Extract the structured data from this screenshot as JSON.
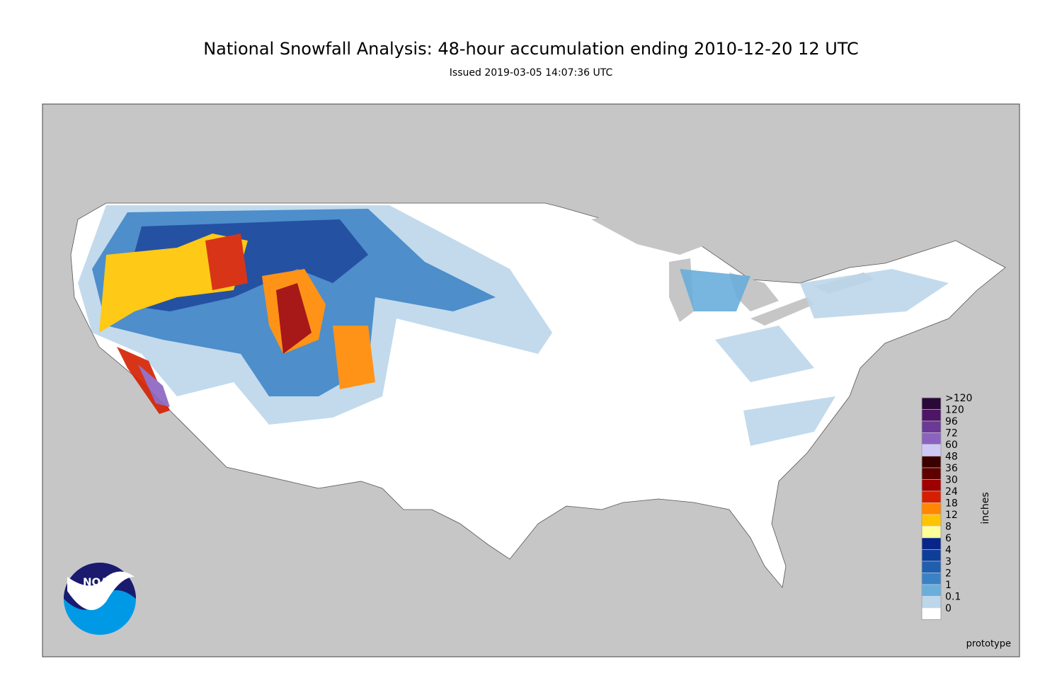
{
  "header": {
    "title": "National Snowfall Analysis: 48-hour accumulation ending 2010-12-20 12 UTC",
    "subtitle": "Issued 2019-03-05 14:07:36 UTC"
  },
  "legend": {
    "unit": "inches",
    "levels": [
      {
        "label": ">120",
        "color": "#2a0838"
      },
      {
        "label": "120",
        "color": "#4d1666"
      },
      {
        "label": "96",
        "color": "#6b3a94"
      },
      {
        "label": "72",
        "color": "#8a63bf"
      },
      {
        "label": "60",
        "color": "#cec8f5"
      },
      {
        "label": "48",
        "color": "#3a0000"
      },
      {
        "label": "36",
        "color": "#5e0000"
      },
      {
        "label": "30",
        "color": "#9e0000"
      },
      {
        "label": "24",
        "color": "#d42000"
      },
      {
        "label": "18",
        "color": "#ff8800"
      },
      {
        "label": "12",
        "color": "#ffc400"
      },
      {
        "label": "8",
        "color": "#ffff99"
      },
      {
        "label": "6",
        "color": "#08268a"
      },
      {
        "label": "4",
        "color": "#0e3f98"
      },
      {
        "label": "3",
        "color": "#1f5fae"
      },
      {
        "label": "2",
        "color": "#3a82c6"
      },
      {
        "label": "1",
        "color": "#6aaedc"
      },
      {
        "label": "0.1",
        "color": "#bcd6ea"
      },
      {
        "label": "0",
        "color": "#ffffff"
      }
    ]
  },
  "note": "prototype",
  "logo": "NOAA"
}
